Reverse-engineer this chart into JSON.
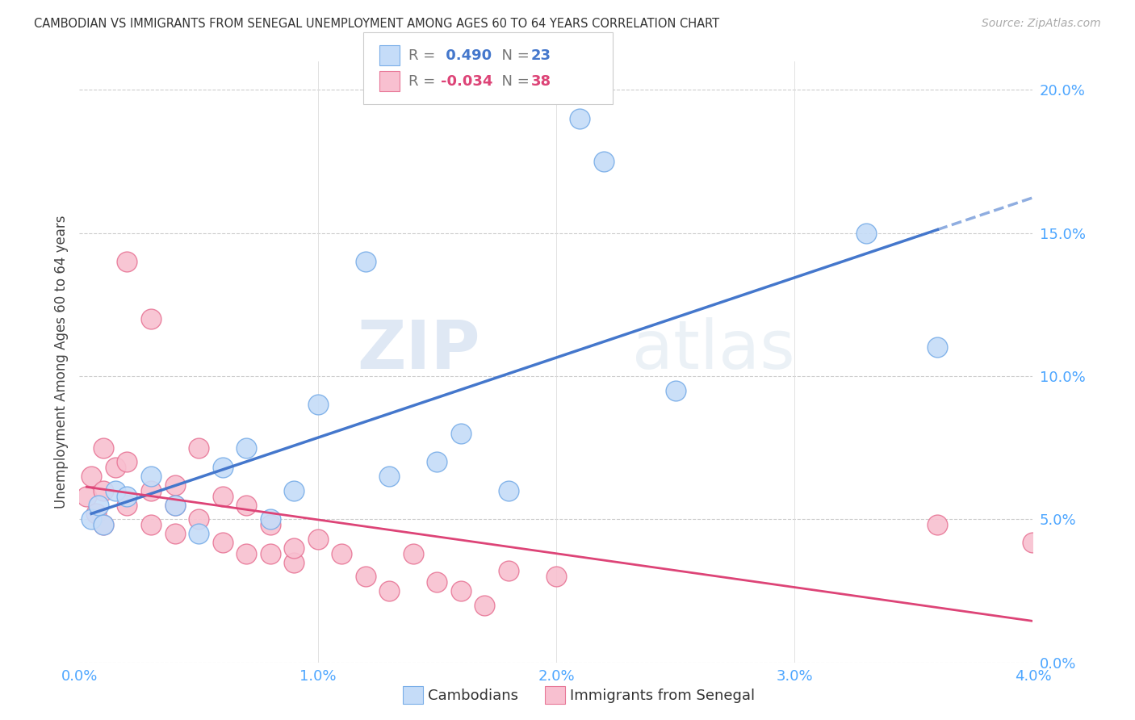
{
  "title": "CAMBODIAN VS IMMIGRANTS FROM SENEGAL UNEMPLOYMENT AMONG AGES 60 TO 64 YEARS CORRELATION CHART",
  "source": "Source: ZipAtlas.com",
  "tick_color": "#4da6ff",
  "ylabel": "Unemployment Among Ages 60 to 64 years",
  "xmin": 0.0,
  "xmax": 0.04,
  "ymin": 0.0,
  "ymax": 0.21,
  "blue_R": 0.49,
  "blue_N": 23,
  "pink_R": -0.034,
  "pink_N": 38,
  "blue_color": "#c5dcf8",
  "blue_edge": "#7aaee8",
  "pink_color": "#f8c0d0",
  "pink_edge": "#e87898",
  "blue_line_color": "#4477cc",
  "pink_line_color": "#dd4477",
  "watermark": "ZIPatlas",
  "xticks": [
    0.0,
    0.01,
    0.02,
    0.03,
    0.04
  ],
  "xtick_labels": [
    "0.0%",
    "1.0%",
    "2.0%",
    "3.0%",
    "4.0%"
  ],
  "yticks": [
    0.0,
    0.05,
    0.1,
    0.15,
    0.2
  ],
  "ytick_labels": [
    "0.0%",
    "5.0%",
    "10.0%",
    "15.0%",
    "20.0%"
  ],
  "blue_x": [
    0.0005,
    0.0008,
    0.001,
    0.0015,
    0.002,
    0.003,
    0.004,
    0.005,
    0.006,
    0.007,
    0.008,
    0.009,
    0.01,
    0.012,
    0.013,
    0.015,
    0.016,
    0.018,
    0.021,
    0.022,
    0.025,
    0.033,
    0.036
  ],
  "blue_y": [
    0.05,
    0.055,
    0.048,
    0.06,
    0.058,
    0.065,
    0.055,
    0.045,
    0.068,
    0.075,
    0.05,
    0.06,
    0.09,
    0.14,
    0.065,
    0.07,
    0.08,
    0.06,
    0.19,
    0.175,
    0.095,
    0.15,
    0.11
  ],
  "pink_x": [
    0.0003,
    0.0005,
    0.0007,
    0.001,
    0.001,
    0.001,
    0.0015,
    0.002,
    0.002,
    0.002,
    0.003,
    0.003,
    0.003,
    0.004,
    0.004,
    0.004,
    0.005,
    0.005,
    0.006,
    0.006,
    0.007,
    0.007,
    0.008,
    0.008,
    0.009,
    0.009,
    0.01,
    0.011,
    0.012,
    0.013,
    0.014,
    0.015,
    0.016,
    0.017,
    0.018,
    0.02,
    0.036,
    0.04
  ],
  "pink_y": [
    0.058,
    0.065,
    0.052,
    0.048,
    0.075,
    0.06,
    0.068,
    0.055,
    0.07,
    0.14,
    0.048,
    0.06,
    0.12,
    0.045,
    0.055,
    0.062,
    0.05,
    0.075,
    0.042,
    0.058,
    0.038,
    0.055,
    0.038,
    0.048,
    0.035,
    0.04,
    0.043,
    0.038,
    0.03,
    0.025,
    0.038,
    0.028,
    0.025,
    0.02,
    0.032,
    0.03,
    0.048,
    0.042
  ]
}
